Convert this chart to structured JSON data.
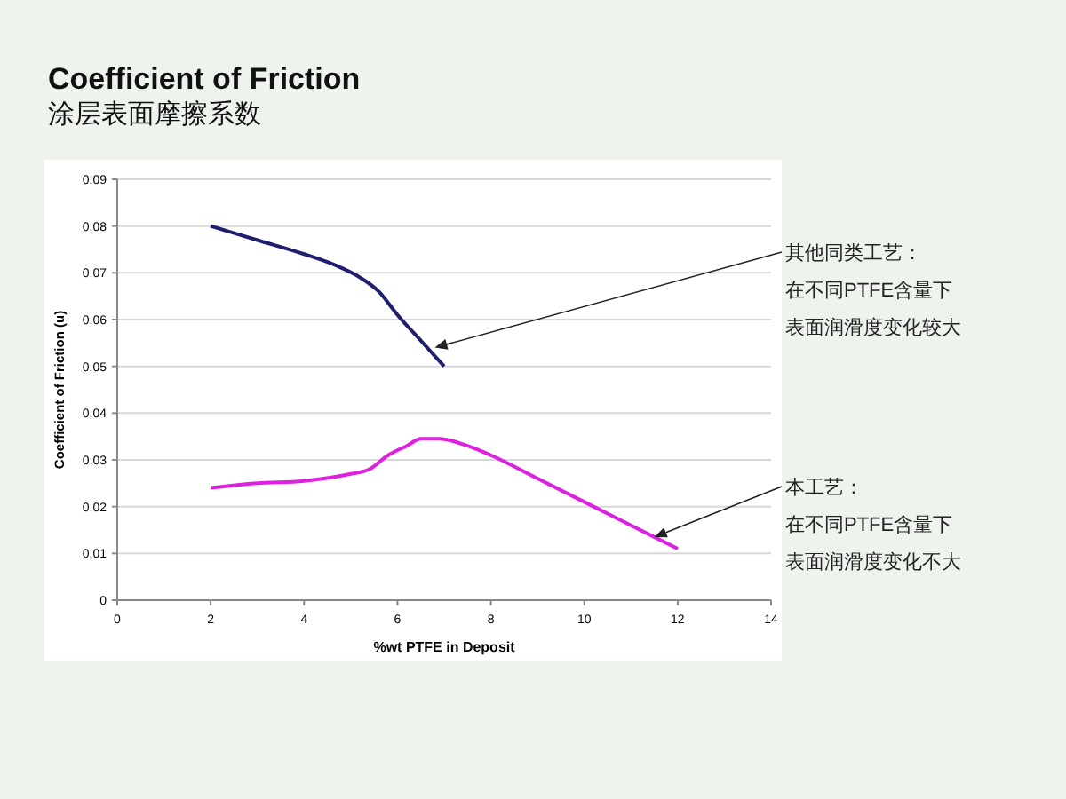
{
  "chart_data": {
    "type": "line",
    "title": "Coefficient of Friction",
    "subtitle": "涂层表面摩擦系数",
    "xlabel": "%wt PTFE in Deposit",
    "ylabel": "Coefficient of Friction (u)",
    "series": [
      {
        "color": "#1f1f6e",
        "x": [
          2,
          3,
          4,
          4.7,
          5.2,
          5.6,
          6,
          6.5,
          7
        ],
        "values": [
          0.08,
          0.077,
          0.074,
          0.0715,
          0.069,
          0.066,
          0.061,
          0.0555,
          0.05
        ]
      },
      {
        "color": "#e020e0",
        "x": [
          2,
          3,
          4,
          5,
          5.4,
          5.8,
          6.2,
          6.5,
          6.9,
          7.5,
          8,
          9,
          10,
          11,
          12
        ],
        "values": [
          0.024,
          0.025,
          0.0255,
          0.027,
          0.028,
          0.031,
          0.033,
          0.0345,
          0.0345,
          0.033,
          0.031,
          0.026,
          0.021,
          0.016,
          0.011
        ]
      }
    ],
    "xlim": [
      0,
      14
    ],
    "xticks": [
      0,
      2,
      4,
      6,
      8,
      10,
      12,
      14
    ],
    "ylim": [
      0,
      0.09
    ],
    "yticks": [
      0,
      0.01,
      0.02,
      0.03,
      0.04,
      0.05,
      0.06,
      0.07,
      0.08,
      0.09
    ],
    "grid": "y",
    "marker": "none",
    "line_style": "solid",
    "annotations": [
      {
        "text": "其他同类工艺：",
        "x": 6.8,
        "y": 0.054
      },
      "在不同PTFE含量下",
      "表面润滑度变化较大",
      {
        "text": "本工艺：",
        "x": 11.5,
        "y": 0.0135
      },
      "在不同PTFE含量下",
      "表面润滑度变化不大"
    ]
  }
}
